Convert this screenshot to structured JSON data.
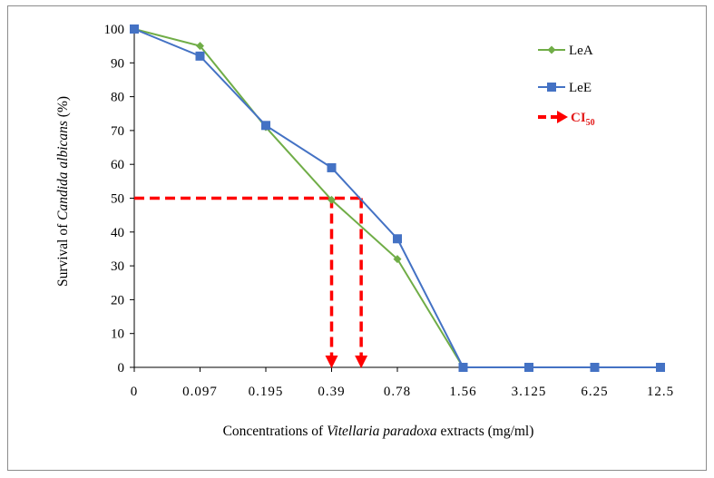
{
  "chart_data": {
    "type": "line",
    "categories": [
      "0",
      "0.097",
      "0.195",
      "0.39",
      "0.78",
      "1.56",
      "3.125",
      "6.25",
      "12.5"
    ],
    "series": [
      {
        "name": "LeA",
        "color": "#70ad47",
        "marker": "diamond",
        "values": [
          100,
          95,
          71,
          49.5,
          32,
          0,
          0,
          0,
          0
        ]
      },
      {
        "name": "LeE",
        "color": "#4472c4",
        "marker": "square",
        "values": [
          100,
          92,
          71.5,
          59,
          38,
          0,
          0,
          0,
          0
        ]
      }
    ],
    "ci50": {
      "name_prefix": "CI",
      "name_sub": "50",
      "color": "#ff0000",
      "y": 50,
      "x_positions": [
        3.0,
        3.45
      ]
    },
    "ylim": [
      0,
      100
    ],
    "yticks": [
      0,
      10,
      20,
      30,
      40,
      50,
      60,
      70,
      80,
      90,
      100
    ],
    "ylabel_pre": "Survival of ",
    "ylabel_italic": "Candida albicans",
    "ylabel_post": " (%)",
    "xlabel_pre": "Concentrations  of ",
    "xlabel_italic": "Vitellaria paradoxa",
    "xlabel_post": " extracts  (mg/ml)",
    "grid": false,
    "legend_position": "top-right"
  }
}
